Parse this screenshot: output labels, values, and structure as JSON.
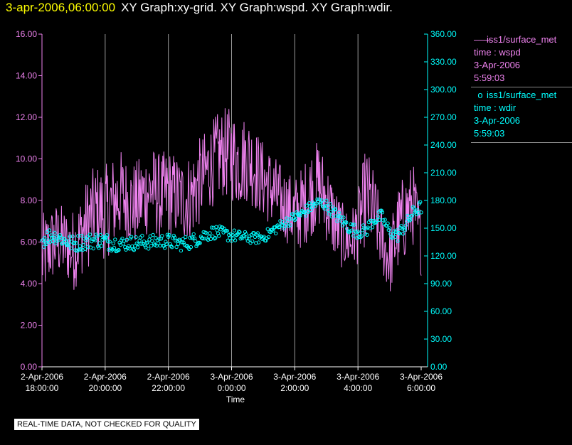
{
  "header": {
    "timestamp": "3-apr-2006,06:00:00",
    "graphs": "XY Graph:xy-grid.  XY Graph:wspd.  XY Graph:wdir."
  },
  "legend": {
    "wspd": {
      "marker": "——",
      "name": "iss1/surface_met",
      "var": "time : wspd",
      "date": "3-Apr-2006",
      "time": "5:59:03"
    },
    "wdir": {
      "marker": "o",
      "name": "iss1/surface_met",
      "var": "time : wdir",
      "date": "3-Apr-2006",
      "time": "5:59:03"
    }
  },
  "disclaimer": "REAL-TIME DATA, NOT CHECKED FOR QUALITY",
  "chart_data": {
    "type": "line",
    "xlabel": "Time",
    "x_ticks": [
      {
        "line1": "2-Apr-2006",
        "line2": "18:00:00"
      },
      {
        "line1": "2-Apr-2006",
        "line2": "20:00:00"
      },
      {
        "line1": "2-Apr-2006",
        "line2": "22:00:00"
      },
      {
        "line1": "3-Apr-2006",
        "line2": "0:00:00"
      },
      {
        "line1": "3-Apr-2006",
        "line2": "2:00:00"
      },
      {
        "line1": "3-Apr-2006",
        "line2": "4:00:00"
      },
      {
        "line1": "3-Apr-2006",
        "line2": "6:00:00"
      }
    ],
    "xlim_hours": [
      0,
      12
    ],
    "y_left": {
      "ylim": [
        0,
        16
      ],
      "ticks": [
        "0.00",
        "2.00",
        "4.00",
        "6.00",
        "8.00",
        "10.00",
        "12.00",
        "14.00",
        "16.00"
      ],
      "color": "#ee82ee"
    },
    "y_right": {
      "ylim": [
        0,
        360
      ],
      "ticks": [
        "0.00",
        "30.00",
        "60.00",
        "90.00",
        "120.00",
        "150.00",
        "180.00",
        "210.00",
        "240.00",
        "270.00",
        "300.00",
        "330.00",
        "360.00"
      ],
      "color": "#00ffff"
    },
    "grid": "vertical",
    "series": [
      {
        "name": "time : wspd",
        "axis": "left",
        "style": "line",
        "color": "#ee82ee",
        "x": [
          0,
          0.25,
          0.5,
          0.75,
          1,
          1.25,
          1.5,
          1.75,
          2,
          2.25,
          2.5,
          2.75,
          3,
          3.25,
          3.5,
          3.75,
          4,
          4.25,
          4.5,
          4.75,
          5,
          5.25,
          5.5,
          5.75,
          6,
          6.25,
          6.5,
          6.75,
          7,
          7.25,
          7.5,
          7.75,
          8,
          8.25,
          8.5,
          8.75,
          9,
          9.25,
          9.5,
          9.75,
          10,
          10.25,
          10.5,
          10.75,
          11,
          11.25,
          11.5,
          11.75,
          12
        ],
        "y": [
          5.2,
          5.8,
          6.1,
          5.9,
          5.6,
          6.4,
          7.1,
          7.6,
          7.4,
          7.9,
          8.3,
          7.9,
          7.8,
          8.3,
          8.6,
          8.1,
          8.4,
          8.2,
          8.0,
          8.3,
          8.9,
          9.5,
          10.0,
          10.3,
          10.2,
          9.8,
          10.1,
          9.5,
          9.0,
          8.6,
          8.0,
          7.7,
          7.3,
          7.7,
          8.4,
          8.8,
          8.0,
          7.0,
          6.3,
          6.0,
          6.7,
          8.3,
          7.5,
          6.1,
          5.1,
          6.5,
          7.3,
          7.8,
          6.0
        ],
        "noise": [
          1.6,
          1.4,
          1.4,
          1.3,
          1.5,
          1.5,
          1.7,
          1.6,
          1.7,
          1.7,
          1.6,
          1.5,
          1.6,
          1.6,
          1.5,
          1.6,
          1.6,
          1.5,
          1.5,
          1.6,
          1.6,
          1.5,
          1.6,
          1.6,
          1.7,
          1.6,
          1.6,
          1.5,
          1.4,
          1.4,
          1.4,
          1.3,
          1.4,
          1.5,
          1.6,
          1.6,
          1.5,
          1.4,
          1.2,
          1.1,
          1.3,
          1.8,
          1.5,
          1.2,
          1.3,
          1.6,
          1.6,
          1.5,
          1.2
        ]
      },
      {
        "name": "time : wdir",
        "axis": "right",
        "style": "markers",
        "marker": "circle",
        "color": "#00ffff",
        "x": [
          0,
          0.25,
          0.5,
          0.75,
          1,
          1.25,
          1.5,
          1.75,
          2,
          2.25,
          2.5,
          2.75,
          3,
          3.25,
          3.5,
          3.75,
          4,
          4.25,
          4.5,
          4.75,
          5,
          5.25,
          5.5,
          5.75,
          6,
          6.25,
          6.5,
          6.75,
          7,
          7.25,
          7.5,
          7.75,
          8,
          8.25,
          8.5,
          8.75,
          9,
          9.25,
          9.5,
          9.75,
          10,
          10.25,
          10.5,
          10.75,
          11,
          11.25,
          11.5,
          11.75,
          12
        ],
        "y": [
          137,
          142,
          141,
          136,
          133,
          135,
          136,
          137,
          136,
          134,
          133,
          134,
          134,
          135,
          135,
          136,
          136,
          134,
          133,
          136,
          140,
          144,
          146,
          144,
          142,
          141,
          140,
          139,
          140,
          146,
          152,
          157,
          162,
          166,
          173,
          178,
          175,
          166,
          158,
          150,
          146,
          147,
          159,
          163,
          146,
          142,
          153,
          167,
          173
        ],
        "noise": [
          9,
          9,
          8,
          8,
          9,
          9,
          9,
          9,
          9,
          9,
          8,
          8,
          8,
          8,
          8,
          8,
          8,
          8,
          8,
          8,
          8,
          8,
          7,
          7,
          7,
          6,
          6,
          6,
          6,
          6,
          6,
          6,
          6,
          6,
          6,
          6,
          6,
          7,
          7,
          7,
          7,
          7,
          7,
          7,
          7,
          7,
          7,
          7,
          7
        ]
      }
    ]
  }
}
